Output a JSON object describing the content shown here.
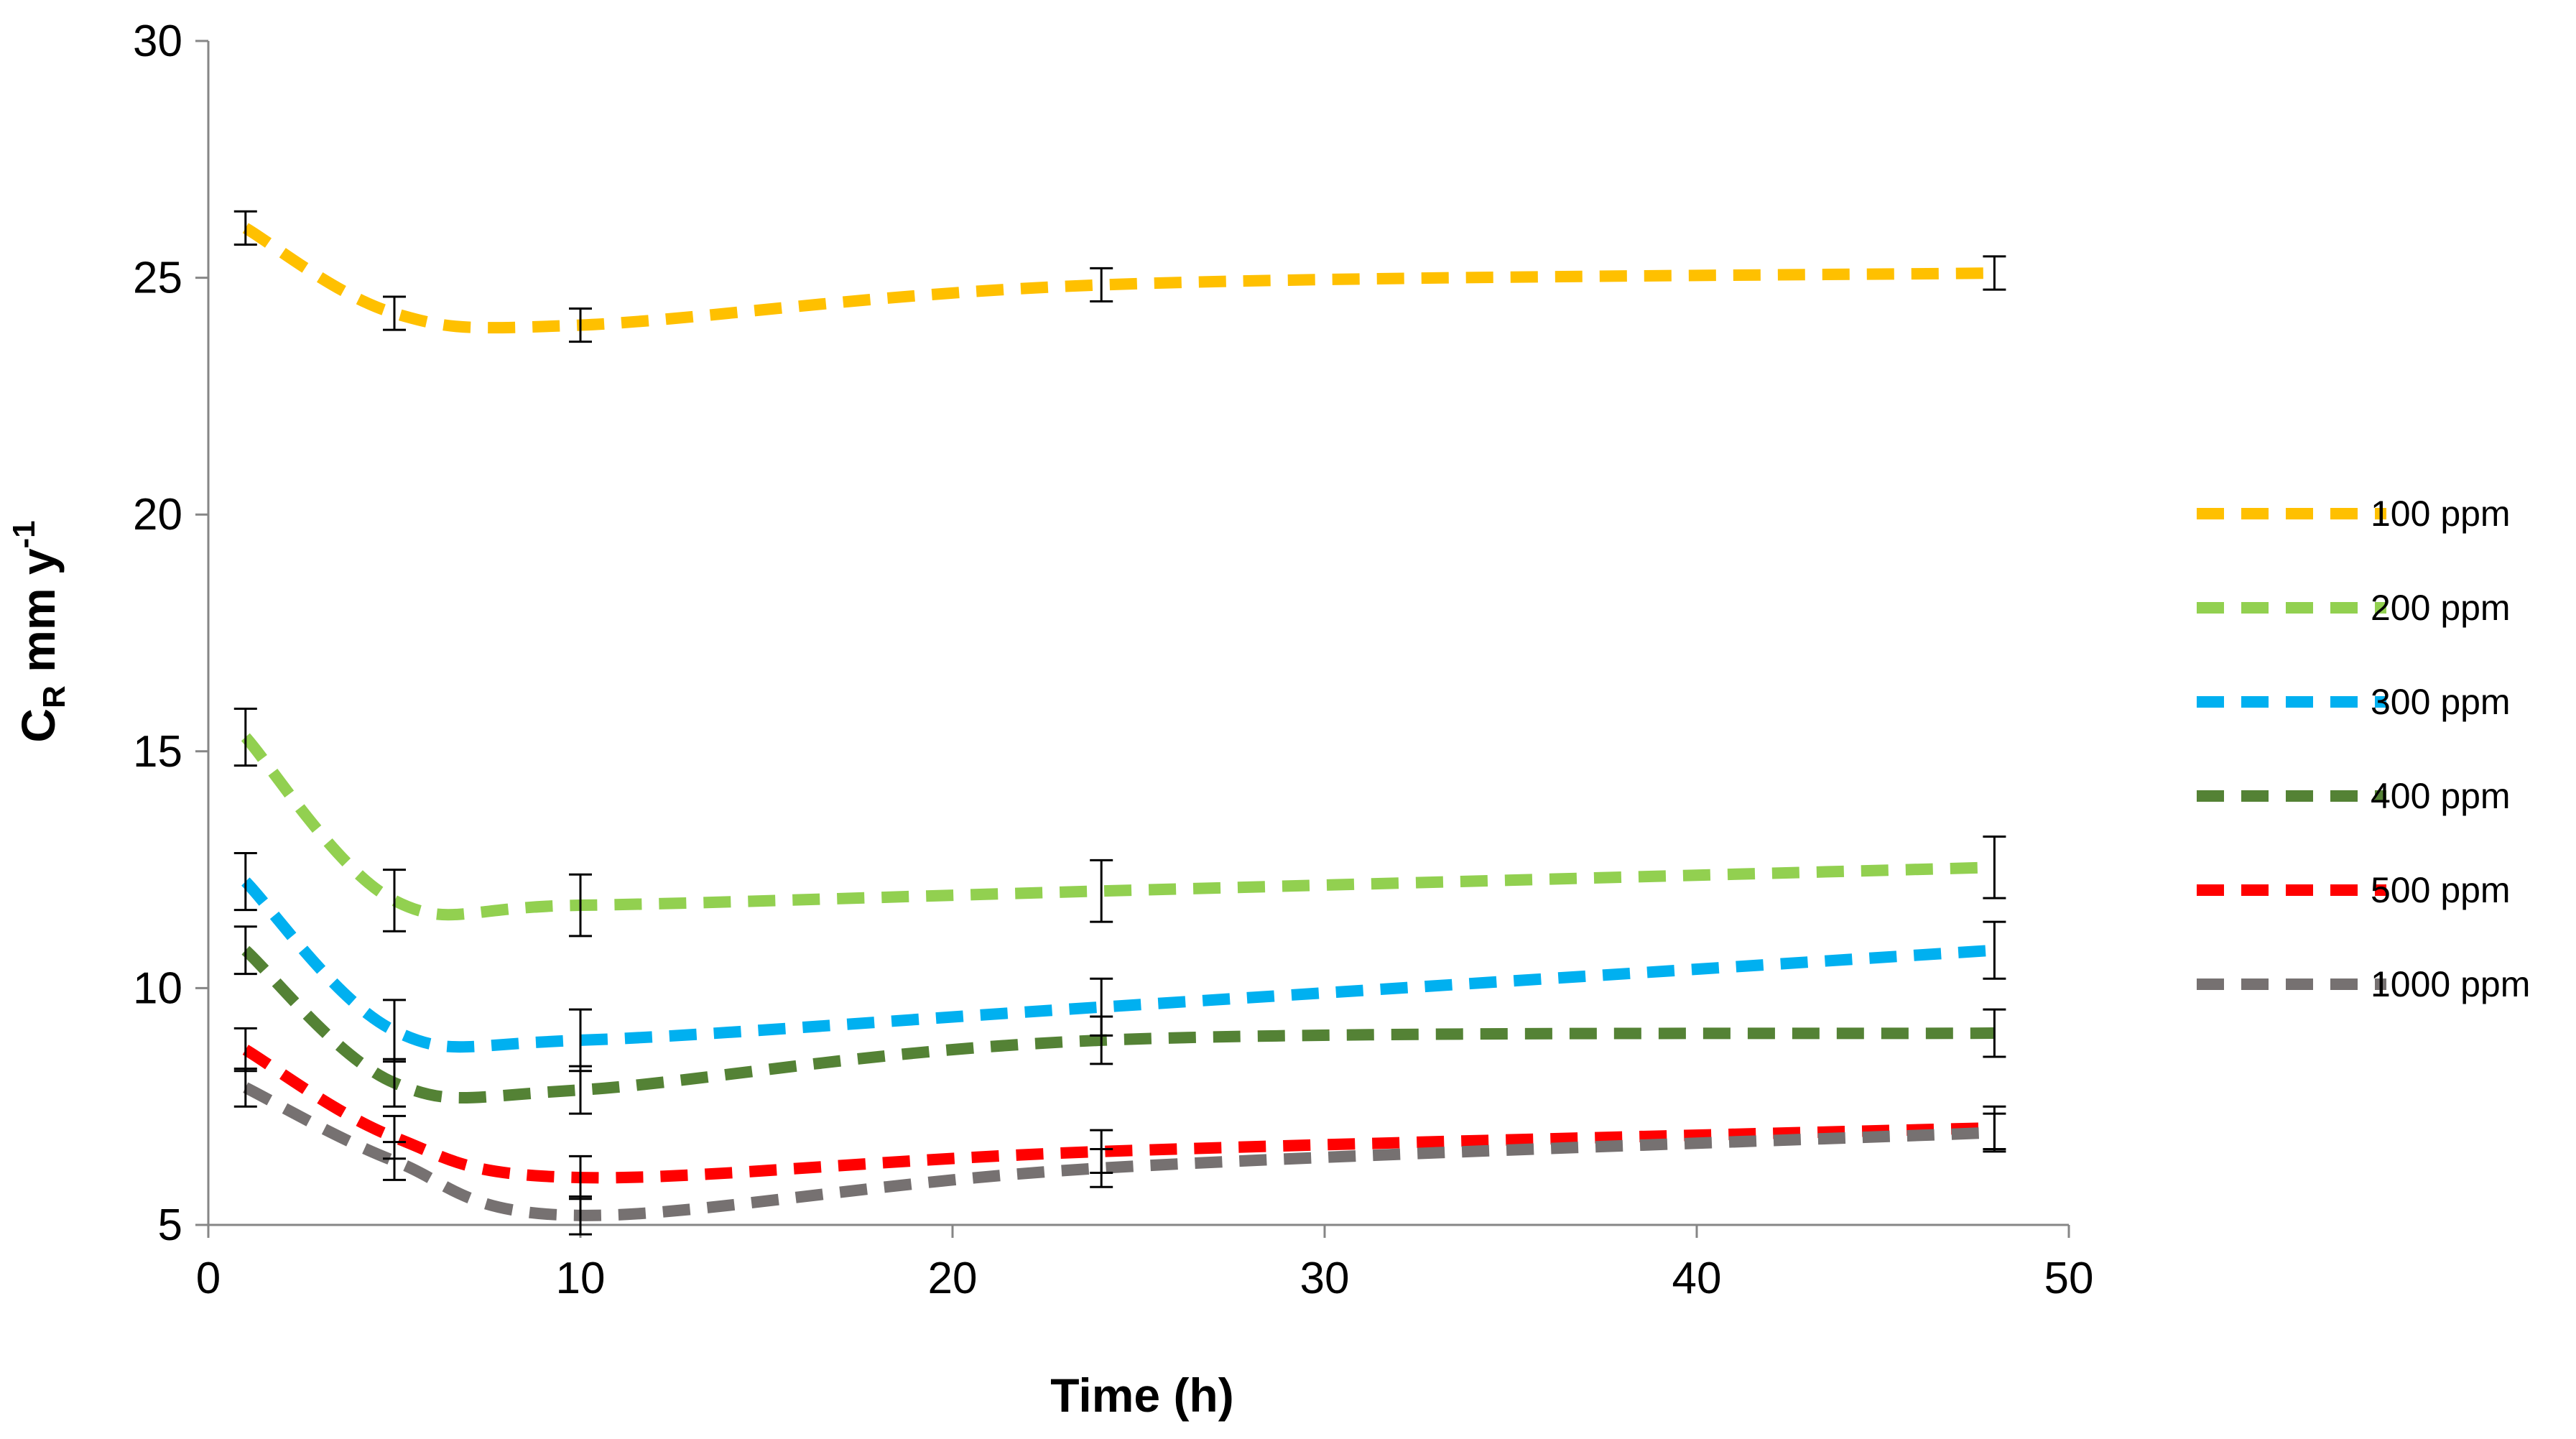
{
  "chart_data": {
    "type": "line",
    "title": "",
    "xlabel": "Time (h)",
    "ylabel": {
      "main": "C",
      "sub": "R",
      "rest": " mm y",
      "sup": "-1"
    },
    "xlim": [
      0,
      50
    ],
    "ylim": [
      5,
      30
    ],
    "xticks": [
      0,
      10,
      20,
      30,
      40,
      50
    ],
    "yticks": [
      5,
      10,
      15,
      20,
      25,
      30
    ],
    "grid": false,
    "legend_position": "right",
    "x": [
      1,
      5,
      10,
      24,
      48
    ],
    "series": [
      {
        "name": "100 ppm",
        "color": "#FFC000",
        "values": [
          26.05,
          24.25,
          24.0,
          24.85,
          25.1
        ],
        "errors": [
          0.35,
          0.35,
          0.35,
          0.35,
          0.35
        ]
      },
      {
        "name": "200 ppm",
        "color": "#92D050",
        "values": [
          15.3,
          11.85,
          11.75,
          12.05,
          12.55
        ],
        "errors": [
          0.6,
          0.65,
          0.65,
          0.65,
          0.65
        ]
      },
      {
        "name": "300 ppm",
        "color": "#00B0F0",
        "values": [
          12.25,
          9.1,
          8.9,
          9.6,
          10.8
        ],
        "errors": [
          0.6,
          0.65,
          0.65,
          0.6,
          0.6
        ]
      },
      {
        "name": "400 ppm",
        "color": "#548235",
        "values": [
          10.8,
          8.0,
          7.85,
          8.9,
          9.05
        ],
        "errors": [
          0.5,
          0.5,
          0.5,
          0.5,
          0.5
        ]
      },
      {
        "name": "500 ppm",
        "color": "#FF0000",
        "values": [
          8.7,
          6.85,
          6.0,
          6.55,
          7.05
        ],
        "errors": [
          0.45,
          0.45,
          0.45,
          0.45,
          0.45
        ]
      },
      {
        "name": "1000 ppm",
        "color": "#767171",
        "values": [
          7.9,
          6.35,
          5.2,
          6.2,
          6.95
        ],
        "errors": [
          0.4,
          0.4,
          0.4,
          0.4,
          0.4
        ]
      }
    ]
  }
}
